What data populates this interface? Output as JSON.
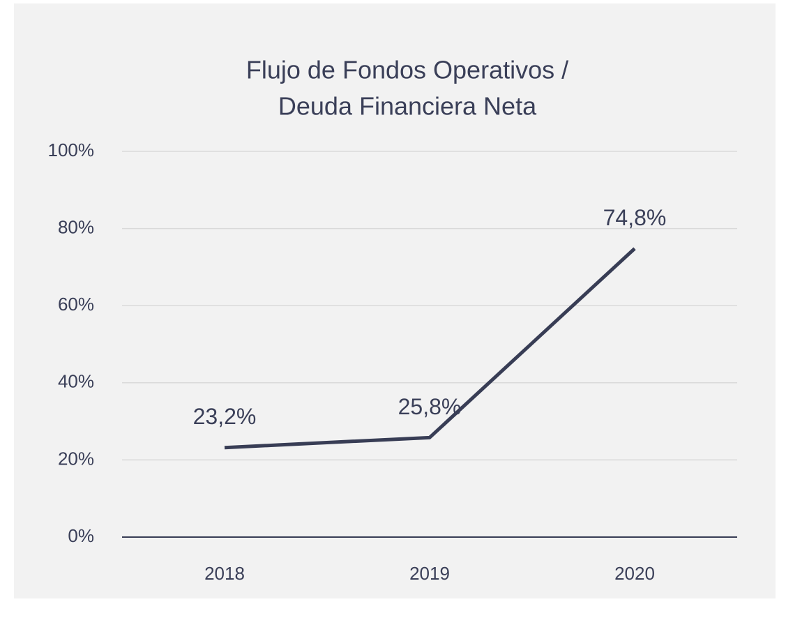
{
  "chart_data": {
    "type": "line",
    "title": [
      "Flujo de Fondos Operativos /",
      "Deuda Financiera Neta"
    ],
    "categories": [
      "2018",
      "2019",
      "2020"
    ],
    "series": [
      {
        "name": "Flujo de Fondos Operativos / Deuda Financiera Neta",
        "color": "#383d55",
        "values": [
          23.2,
          25.8,
          74.8
        ],
        "value_labels": [
          "23,2%",
          "25,8%",
          "74,8%"
        ]
      }
    ],
    "ylim": [
      0,
      100
    ],
    "yticks": [
      {
        "value": 0,
        "label": "0%"
      },
      {
        "value": 20,
        "label": "20%"
      },
      {
        "value": 40,
        "label": "40%"
      },
      {
        "value": 60,
        "label": "60%"
      },
      {
        "value": 80,
        "label": "80%"
      },
      {
        "value": 100,
        "label": "100%"
      }
    ],
    "grid": true
  }
}
